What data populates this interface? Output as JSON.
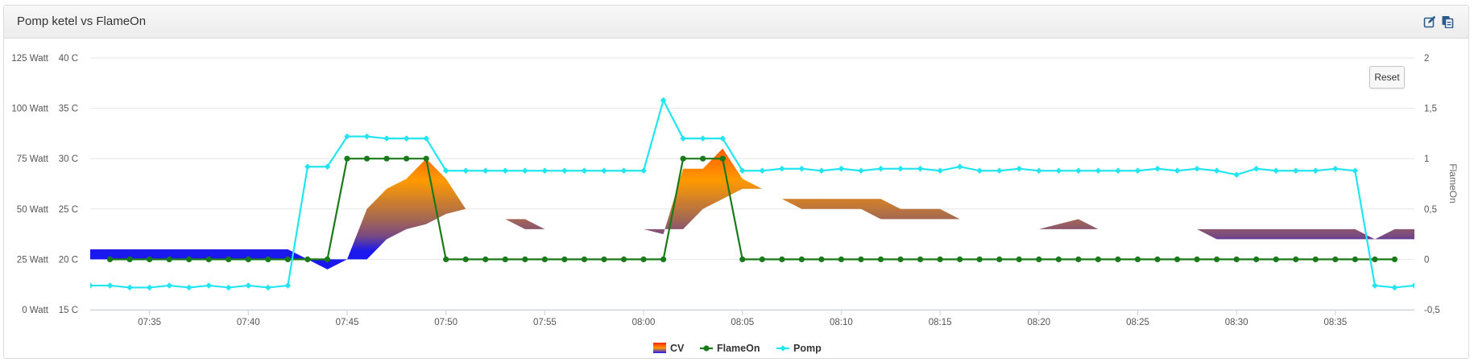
{
  "panel": {
    "title": "Pomp ketel vs FlameOn"
  },
  "header_icons": {
    "edit_icon": "edit-icon",
    "copy_icon": "copy-icon",
    "color": "#2b5b8e"
  },
  "reset_label": "Reset",
  "chart_data": {
    "type": "line",
    "x_ticks": [
      "07:35",
      "07:40",
      "07:45",
      "07:50",
      "07:55",
      "08:00",
      "08:05",
      "08:10",
      "08:15",
      "08:20",
      "08:25",
      "08:30",
      "08:35"
    ],
    "x_range": [
      "07:32",
      "08:39"
    ],
    "y_axes": {
      "watt": {
        "ticks": [
          "0 Watt",
          "25 Watt",
          "50 Watt",
          "75 Watt",
          "100 Watt",
          "125 Watt"
        ],
        "range": [
          0,
          125
        ]
      },
      "temp": {
        "ticks": [
          "15 C",
          "20 C",
          "25 C",
          "30 C",
          "35 C",
          "40 C"
        ],
        "range": [
          15,
          40
        ]
      },
      "flameon": {
        "label": "FlameOn",
        "ticks": [
          "-0,5",
          "0",
          "0,5",
          "1",
          "1,5",
          "2"
        ],
        "range": [
          -0.5,
          2
        ]
      }
    },
    "legend_position": "bottom-center",
    "grid": true,
    "series": [
      {
        "name": "CV",
        "unit": "C",
        "axis": "temp",
        "colors": {
          "high": "#ff2200",
          "mid": "#ff9900",
          "low": "#1a1aff"
        },
        "points": [
          [
            "07:32",
            21.0,
            20.0
          ],
          [
            "07:42",
            21.0,
            20.0
          ],
          [
            "07:43",
            20.0,
            20.0
          ],
          [
            "07:44",
            20.0,
            19.0
          ],
          [
            "07:45",
            20.0,
            20.0
          ],
          [
            "07:46",
            25.0,
            20.0
          ],
          [
            "07:47",
            27.0,
            22.0
          ],
          [
            "07:48",
            28.0,
            23.0
          ],
          [
            "07:49",
            30.0,
            23.5
          ],
          [
            "07:50",
            28.0,
            24.5
          ],
          [
            "07:51",
            25.0,
            25.0
          ],
          [
            "07:53",
            24.0,
            24.0
          ],
          [
            "07:54",
            24.0,
            23.0
          ],
          [
            "07:55",
            23.0,
            23.0
          ],
          [
            "07:57",
            23.0,
            23.0
          ],
          [
            "08:00",
            23.0,
            23.0
          ],
          [
            "08:01",
            22.5,
            23.0
          ],
          [
            "08:02",
            29.0,
            23.0
          ],
          [
            "08:03",
            29.0,
            25.0
          ],
          [
            "08:04",
            31.0,
            26.0
          ],
          [
            "08:05",
            28.0,
            27.0
          ],
          [
            "08:06",
            27.0,
            27.0
          ],
          [
            "08:07",
            26.0,
            26.0
          ],
          [
            "08:08",
            26.0,
            25.0
          ],
          [
            "08:11",
            26.0,
            25.0
          ],
          [
            "08:12",
            26.0,
            24.0
          ],
          [
            "08:13",
            25.0,
            24.0
          ],
          [
            "08:14",
            25.0,
            24.0
          ],
          [
            "08:15",
            25.0,
            24.0
          ],
          [
            "08:16",
            24.0,
            24.0
          ],
          [
            "08:17",
            24.0,
            24.0
          ],
          [
            "08:18",
            24.0,
            24.0
          ],
          [
            "08:19",
            24.0,
            24.0
          ],
          [
            "08:20",
            23.0,
            23.0
          ],
          [
            "08:22",
            24.0,
            23.0
          ],
          [
            "08:23",
            23.0,
            23.0
          ],
          [
            "08:28",
            23.0,
            23.0
          ],
          [
            "08:29",
            22.0,
            23.0
          ],
          [
            "08:36",
            22.0,
            23.0
          ],
          [
            "08:37",
            22.0,
            22.0
          ],
          [
            "08:38",
            23.0,
            22.0
          ],
          [
            "08:39",
            23.0,
            22.0
          ]
        ]
      },
      {
        "name": "FlameOn",
        "axis": "flameon",
        "color": "#1a7a1a",
        "points": [
          [
            "07:33",
            0
          ],
          [
            "07:34",
            0
          ],
          [
            "07:35",
            0
          ],
          [
            "07:36",
            0
          ],
          [
            "07:37",
            0
          ],
          [
            "07:38",
            0
          ],
          [
            "07:39",
            0
          ],
          [
            "07:40",
            0
          ],
          [
            "07:41",
            0
          ],
          [
            "07:42",
            0
          ],
          [
            "07:43",
            0
          ],
          [
            "07:44",
            0
          ],
          [
            "07:45",
            1
          ],
          [
            "07:46",
            1
          ],
          [
            "07:47",
            1
          ],
          [
            "07:48",
            1
          ],
          [
            "07:49",
            1
          ],
          [
            "07:50",
            0
          ],
          [
            "07:51",
            0
          ],
          [
            "07:52",
            0
          ],
          [
            "07:53",
            0
          ],
          [
            "07:54",
            0
          ],
          [
            "07:55",
            0
          ],
          [
            "07:56",
            0
          ],
          [
            "07:57",
            0
          ],
          [
            "07:58",
            0
          ],
          [
            "07:59",
            0
          ],
          [
            "08:00",
            0
          ],
          [
            "08:01",
            0
          ],
          [
            "08:02",
            1
          ],
          [
            "08:03",
            1
          ],
          [
            "08:04",
            1
          ],
          [
            "08:05",
            0
          ],
          [
            "08:06",
            0
          ],
          [
            "08:07",
            0
          ],
          [
            "08:08",
            0
          ],
          [
            "08:09",
            0
          ],
          [
            "08:10",
            0
          ],
          [
            "08:11",
            0
          ],
          [
            "08:12",
            0
          ],
          [
            "08:13",
            0
          ],
          [
            "08:14",
            0
          ],
          [
            "08:15",
            0
          ],
          [
            "08:16",
            0
          ],
          [
            "08:17",
            0
          ],
          [
            "08:18",
            0
          ],
          [
            "08:19",
            0
          ],
          [
            "08:20",
            0
          ],
          [
            "08:21",
            0
          ],
          [
            "08:22",
            0
          ],
          [
            "08:23",
            0
          ],
          [
            "08:24",
            0
          ],
          [
            "08:25",
            0
          ],
          [
            "08:26",
            0
          ],
          [
            "08:27",
            0
          ],
          [
            "08:28",
            0
          ],
          [
            "08:29",
            0
          ],
          [
            "08:30",
            0
          ],
          [
            "08:31",
            0
          ],
          [
            "08:32",
            0
          ],
          [
            "08:33",
            0
          ],
          [
            "08:34",
            0
          ],
          [
            "08:35",
            0
          ],
          [
            "08:36",
            0
          ],
          [
            "08:37",
            0
          ],
          [
            "08:38",
            0
          ]
        ]
      },
      {
        "name": "Pomp",
        "unit": "Watt",
        "axis": "watt",
        "color": "#22e5f0",
        "points": [
          [
            "07:32",
            12
          ],
          [
            "07:33",
            12
          ],
          [
            "07:34",
            11
          ],
          [
            "07:35",
            11
          ],
          [
            "07:36",
            12
          ],
          [
            "07:37",
            11
          ],
          [
            "07:38",
            12
          ],
          [
            "07:39",
            11
          ],
          [
            "07:40",
            12
          ],
          [
            "07:41",
            11
          ],
          [
            "07:42",
            12
          ],
          [
            "07:43",
            71
          ],
          [
            "07:44",
            71
          ],
          [
            "07:45",
            86
          ],
          [
            "07:46",
            86
          ],
          [
            "07:47",
            85
          ],
          [
            "07:48",
            85
          ],
          [
            "07:49",
            85
          ],
          [
            "07:50",
            69
          ],
          [
            "07:51",
            69
          ],
          [
            "07:52",
            69
          ],
          [
            "07:53",
            69
          ],
          [
            "07:54",
            69
          ],
          [
            "07:55",
            69
          ],
          [
            "07:56",
            69
          ],
          [
            "07:57",
            69
          ],
          [
            "07:58",
            69
          ],
          [
            "07:59",
            69
          ],
          [
            "08:00",
            69
          ],
          [
            "08:01",
            104
          ],
          [
            "08:02",
            85
          ],
          [
            "08:03",
            85
          ],
          [
            "08:04",
            85
          ],
          [
            "08:05",
            69
          ],
          [
            "08:06",
            69
          ],
          [
            "08:07",
            70
          ],
          [
            "08:08",
            70
          ],
          [
            "08:09",
            69
          ],
          [
            "08:10",
            70
          ],
          [
            "08:11",
            69
          ],
          [
            "08:12",
            70
          ],
          [
            "08:13",
            70
          ],
          [
            "08:14",
            70
          ],
          [
            "08:15",
            69
          ],
          [
            "08:16",
            71
          ],
          [
            "08:17",
            69
          ],
          [
            "08:18",
            69
          ],
          [
            "08:19",
            70
          ],
          [
            "08:20",
            69
          ],
          [
            "08:21",
            69
          ],
          [
            "08:22",
            69
          ],
          [
            "08:23",
            69
          ],
          [
            "08:24",
            69
          ],
          [
            "08:25",
            69
          ],
          [
            "08:26",
            70
          ],
          [
            "08:27",
            69
          ],
          [
            "08:28",
            70
          ],
          [
            "08:29",
            69
          ],
          [
            "08:30",
            67
          ],
          [
            "08:31",
            70
          ],
          [
            "08:32",
            69
          ],
          [
            "08:33",
            69
          ],
          [
            "08:34",
            69
          ],
          [
            "08:35",
            70
          ],
          [
            "08:36",
            69
          ],
          [
            "08:37",
            12
          ],
          [
            "08:38",
            11
          ],
          [
            "08:39",
            12
          ]
        ]
      }
    ]
  }
}
